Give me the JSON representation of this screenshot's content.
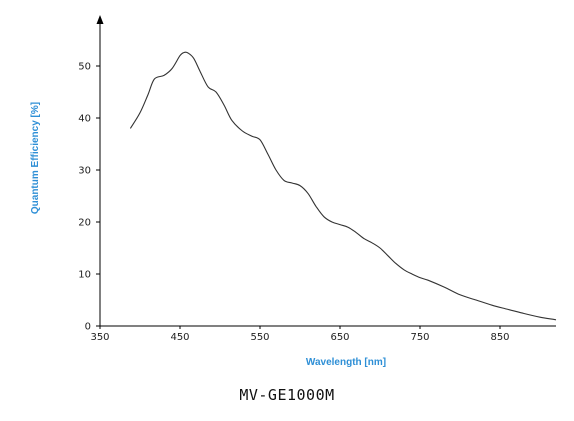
{
  "chart_data": {
    "type": "line",
    "title": "",
    "xlabel": "Wavelength [nm]",
    "ylabel": "Quantum Efficiency [%]",
    "xlim": [
      350,
      920
    ],
    "ylim": [
      0,
      55
    ],
    "xticks": [
      "350",
      "450",
      "550",
      "650",
      "750",
      "850"
    ],
    "yticks": [
      "0",
      "10",
      "20",
      "30",
      "40",
      "50"
    ],
    "grid": false,
    "series": [
      {
        "x": [
          388,
          400,
          410,
          418,
          430,
          440,
          450,
          455,
          460,
          467,
          475,
          485,
          495,
          505,
          515,
          528,
          540,
          550,
          560,
          570,
          580,
          590,
          600,
          610,
          620,
          630,
          640,
          650,
          660,
          670,
          680,
          690,
          700,
          710,
          720,
          730,
          740,
          750,
          760,
          780,
          800,
          820,
          840,
          860,
          880,
          900,
          920
        ],
        "y": [
          38,
          41,
          44.5,
          47.5,
          48.2,
          49.5,
          52,
          52.6,
          52.5,
          51.5,
          49,
          46,
          45,
          42.5,
          39.5,
          37.5,
          36.5,
          35.8,
          33,
          30,
          28,
          27.5,
          27,
          25.5,
          23,
          21,
          20,
          19.5,
          19,
          18,
          16.8,
          16,
          15,
          13.5,
          12,
          10.8,
          10,
          9.3,
          8.8,
          7.5,
          6,
          5,
          4,
          3.2,
          2.4,
          1.7,
          1.2
        ]
      }
    ]
  },
  "caption": "MV-GE1000M",
  "colors": {
    "line": "#333333",
    "axis": "#000000",
    "axis_label": "#2e8fd6"
  }
}
